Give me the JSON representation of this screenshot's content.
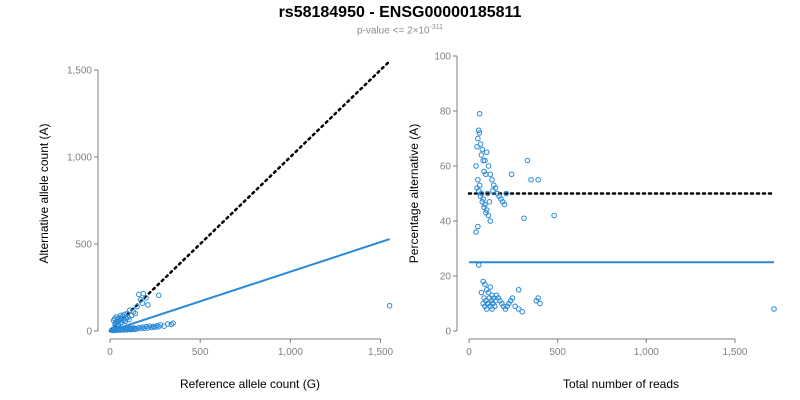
{
  "title": "rs58184950 - ENSG00000185811",
  "subtitle": {
    "prefix": "p-value <= 2×10",
    "exponent": "-311"
  },
  "colors": {
    "points": "#2b8ad6",
    "fit_line": "#2b8ad6",
    "ref_line": "#000000",
    "axis": "#7f7f7f"
  },
  "chart_data": [
    {
      "type": "scatter",
      "title": "",
      "xlabel": "Reference allele count (G)",
      "ylabel": "Alternative allele count (A)",
      "xlim": [
        0,
        1580
      ],
      "ylim": [
        0,
        1580
      ],
      "x_ticks": [
        0,
        500,
        1000,
        1500
      ],
      "x_tick_labels": [
        "0",
        "500",
        "1,000",
        "1,500"
      ],
      "y_ticks": [
        0,
        500,
        1000,
        1500
      ],
      "y_tick_labels": [
        "0",
        "500",
        "1,000",
        "1,500"
      ],
      "grid": false,
      "legend": "none",
      "reference_line": {
        "style": "dotted",
        "x": [
          0,
          1550
        ],
        "y": [
          0,
          1550
        ]
      },
      "fit_line": {
        "style": "solid",
        "x": [
          0,
          1550
        ],
        "y": [
          0,
          528
        ]
      },
      "points": [
        [
          20,
          60
        ],
        [
          25,
          70
        ],
        [
          30,
          45
        ],
        [
          35,
          80
        ],
        [
          40,
          55
        ],
        [
          45,
          40
        ],
        [
          50,
          75
        ],
        [
          55,
          65
        ],
        [
          60,
          90
        ],
        [
          65,
          50
        ],
        [
          70,
          85
        ],
        [
          75,
          60
        ],
        [
          80,
          95
        ],
        [
          90,
          70
        ],
        [
          95,
          100
        ],
        [
          100,
          80
        ],
        [
          110,
          120
        ],
        [
          130,
          110
        ],
        [
          150,
          140
        ],
        [
          160,
          210
        ],
        [
          170,
          180
        ],
        [
          180,
          160
        ],
        [
          185,
          215
        ],
        [
          200,
          190
        ],
        [
          210,
          150
        ],
        [
          270,
          205
        ],
        [
          120,
          90
        ],
        [
          140,
          100
        ],
        [
          28,
          35
        ],
        [
          33,
          52
        ],
        [
          38,
          30
        ],
        [
          42,
          68
        ],
        [
          48,
          58
        ],
        [
          58,
          45
        ],
        [
          62,
          72
        ],
        [
          85,
          55
        ],
        [
          105,
          65
        ],
        [
          10,
          5
        ],
        [
          15,
          8
        ],
        [
          20,
          3
        ],
        [
          25,
          6
        ],
        [
          30,
          10
        ],
        [
          35,
          4
        ],
        [
          40,
          7
        ],
        [
          45,
          12
        ],
        [
          50,
          9
        ],
        [
          55,
          5
        ],
        [
          60,
          14
        ],
        [
          65,
          8
        ],
        [
          70,
          11
        ],
        [
          75,
          6
        ],
        [
          80,
          13
        ],
        [
          85,
          9
        ],
        [
          90,
          15
        ],
        [
          95,
          7
        ],
        [
          100,
          12
        ],
        [
          105,
          10
        ],
        [
          110,
          16
        ],
        [
          115,
          8
        ],
        [
          120,
          14
        ],
        [
          125,
          11
        ],
        [
          130,
          18
        ],
        [
          135,
          9
        ],
        [
          140,
          15
        ],
        [
          150,
          12
        ],
        [
          160,
          20
        ],
        [
          170,
          14
        ],
        [
          180,
          22
        ],
        [
          190,
          16
        ],
        [
          200,
          25
        ],
        [
          210,
          18
        ],
        [
          220,
          28
        ],
        [
          230,
          20
        ],
        [
          240,
          26
        ],
        [
          250,
          22
        ],
        [
          260,
          30
        ],
        [
          270,
          25
        ],
        [
          280,
          35
        ],
        [
          300,
          28
        ],
        [
          320,
          40
        ],
        [
          340,
          38
        ],
        [
          350,
          45
        ],
        [
          1550,
          145
        ]
      ]
    },
    {
      "type": "scatter",
      "title": "",
      "xlabel": "Total number of reads",
      "ylabel": "Percentage alternative (A)",
      "xlim": [
        0,
        1720
      ],
      "ylim": [
        0,
        100
      ],
      "x_ticks": [
        0,
        500,
        1000,
        1500
      ],
      "x_tick_labels": [
        "0",
        "500",
        "1,000",
        "1,500"
      ],
      "y_ticks": [
        0,
        20,
        40,
        60,
        80,
        100
      ],
      "y_tick_labels": [
        "0",
        "20",
        "40",
        "60",
        "80",
        "100"
      ],
      "grid": false,
      "legend": "none",
      "reference_line": {
        "style": "dotted",
        "x": [
          0,
          1720
        ],
        "y": [
          50,
          50
        ]
      },
      "fit_line": {
        "style": "solid",
        "x": [
          0,
          1720
        ],
        "y": [
          25,
          25
        ]
      },
      "points": [
        [
          60,
          79
        ],
        [
          55,
          73
        ],
        [
          58,
          72
        ],
        [
          50,
          70
        ],
        [
          65,
          68
        ],
        [
          45,
          67
        ],
        [
          75,
          66
        ],
        [
          70,
          64
        ],
        [
          80,
          62
        ],
        [
          90,
          62
        ],
        [
          100,
          65
        ],
        [
          110,
          60
        ],
        [
          40,
          60
        ],
        [
          85,
          58
        ],
        [
          95,
          57
        ],
        [
          120,
          57
        ],
        [
          130,
          55
        ],
        [
          140,
          53
        ],
        [
          150,
          52
        ],
        [
          160,
          50
        ],
        [
          170,
          49
        ],
        [
          180,
          48
        ],
        [
          190,
          47
        ],
        [
          200,
          46
        ],
        [
          50,
          55
        ],
        [
          60,
          53
        ],
        [
          70,
          50
        ],
        [
          80,
          48
        ],
        [
          90,
          46
        ],
        [
          100,
          44
        ],
        [
          110,
          42
        ],
        [
          120,
          40
        ],
        [
          45,
          52
        ],
        [
          55,
          51
        ],
        [
          65,
          49
        ],
        [
          75,
          47
        ],
        [
          85,
          45
        ],
        [
          95,
          43
        ],
        [
          40,
          36
        ],
        [
          50,
          38
        ],
        [
          240,
          57
        ],
        [
          330,
          62
        ],
        [
          350,
          55
        ],
        [
          390,
          55
        ],
        [
          310,
          41
        ],
        [
          480,
          42
        ],
        [
          210,
          50
        ],
        [
          105,
          50
        ],
        [
          115,
          47
        ],
        [
          135,
          51
        ],
        [
          55,
          24
        ],
        [
          80,
          18
        ],
        [
          90,
          17
        ],
        [
          100,
          15
        ],
        [
          110,
          14
        ],
        [
          120,
          16
        ],
        [
          130,
          13
        ],
        [
          70,
          14
        ],
        [
          85,
          12
        ],
        [
          95,
          11
        ],
        [
          105,
          10
        ],
        [
          115,
          12
        ],
        [
          125,
          11
        ],
        [
          135,
          10
        ],
        [
          145,
          9
        ],
        [
          155,
          13
        ],
        [
          165,
          12
        ],
        [
          175,
          11
        ],
        [
          185,
          10
        ],
        [
          195,
          9
        ],
        [
          205,
          8
        ],
        [
          215,
          9
        ],
        [
          225,
          10
        ],
        [
          235,
          11
        ],
        [
          245,
          12
        ],
        [
          80,
          10
        ],
        [
          90,
          9
        ],
        [
          100,
          8
        ],
        [
          110,
          10
        ],
        [
          120,
          9
        ],
        [
          130,
          8
        ],
        [
          140,
          12
        ],
        [
          150,
          11
        ],
        [
          260,
          9
        ],
        [
          280,
          8
        ],
        [
          300,
          7
        ],
        [
          280,
          15
        ],
        [
          380,
          11
        ],
        [
          390,
          12
        ],
        [
          400,
          10
        ],
        [
          1720,
          8
        ]
      ]
    }
  ]
}
